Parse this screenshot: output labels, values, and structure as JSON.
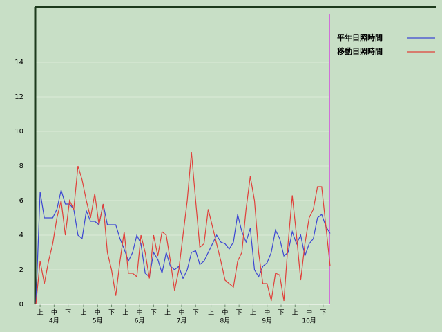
{
  "chart_data": {
    "type": "line",
    "x": [
      0,
      3,
      6,
      9,
      12,
      15,
      18,
      21,
      24,
      27,
      30,
      33,
      36,
      39,
      42,
      45,
      48,
      51,
      54,
      57,
      60,
      63,
      66,
      69,
      72,
      75,
      78,
      81,
      84,
      87,
      90,
      93,
      96,
      99,
      102,
      105,
      108,
      111,
      114,
      117,
      120,
      123,
      126,
      129,
      132,
      135,
      138,
      141,
      144,
      147,
      150,
      153,
      156,
      159,
      162,
      165,
      168,
      171,
      174,
      177,
      180,
      183,
      186,
      189,
      192,
      195,
      198,
      201,
      204,
      207,
      210
    ],
    "series": [
      {
        "name": "平年日照時間",
        "color": "#3c46d2",
        "values": [
          0,
          6.5,
          5.0,
          5.0,
          5.0,
          5.5,
          6.6,
          5.8,
          5.8,
          5.5,
          4.0,
          3.8,
          5.4,
          4.8,
          4.8,
          4.6,
          5.8,
          4.6,
          4.6,
          4.6,
          3.8,
          3.2,
          2.5,
          3.0,
          4.0,
          3.5,
          1.8,
          1.6,
          3.0,
          2.6,
          1.8,
          3.0,
          2.2,
          2.0,
          2.2,
          1.5,
          2.0,
          3.0,
          3.1,
          2.3,
          2.5,
          3.0,
          3.5,
          4.0,
          3.6,
          3.5,
          3.2,
          3.6,
          5.2,
          4.2,
          3.6,
          4.4,
          2.0,
          1.6,
          2.2,
          2.4,
          3.0,
          4.3,
          3.8,
          2.8,
          3.0,
          4.2,
          3.5,
          4.0,
          2.8,
          3.5,
          3.8,
          5.0,
          5.2,
          4.5,
          4.1
        ]
      },
      {
        "name": "移動日照時間",
        "color": "#e0403a",
        "values": [
          0,
          2.5,
          1.2,
          2.5,
          3.5,
          5.0,
          6.0,
          4.0,
          6.0,
          5.5,
          8.0,
          7.2,
          6.0,
          5.0,
          6.4,
          4.6,
          5.8,
          3.0,
          2.0,
          0.5,
          2.5,
          4.2,
          1.8,
          1.8,
          1.6,
          4.0,
          3.0,
          1.5,
          4.0,
          2.8,
          4.2,
          4.0,
          2.5,
          0.8,
          2.0,
          4.0,
          6.0,
          8.8,
          6.0,
          3.3,
          3.5,
          5.5,
          4.5,
          3.5,
          2.5,
          1.4,
          1.2,
          1.0,
          2.5,
          3.0,
          5.5,
          7.4,
          6.0,
          3.0,
          1.2,
          1.2,
          0.2,
          1.8,
          1.7,
          0.2,
          3.5,
          6.3,
          4.0,
          1.4,
          3.5,
          5.0,
          5.5,
          6.8,
          6.8,
          4.5,
          2.2
        ]
      }
    ],
    "xlim": [
      0,
      210
    ],
    "xticks": [
      {
        "value": 3,
        "label": "上"
      },
      {
        "value": 13,
        "label": "中"
      },
      {
        "value": 23,
        "label": "下"
      },
      {
        "value": 34,
        "label": "上"
      },
      {
        "value": 44,
        "label": "中"
      },
      {
        "value": 54,
        "label": "下"
      },
      {
        "value": 64,
        "label": "上"
      },
      {
        "value": 74,
        "label": "中"
      },
      {
        "value": 84,
        "label": "下"
      },
      {
        "value": 94,
        "label": "上"
      },
      {
        "value": 104,
        "label": "中"
      },
      {
        "value": 114,
        "label": "下"
      },
      {
        "value": 125,
        "label": "上"
      },
      {
        "value": 135,
        "label": "中"
      },
      {
        "value": 145,
        "label": "下"
      },
      {
        "value": 155,
        "label": "上"
      },
      {
        "value": 165,
        "label": "中"
      },
      {
        "value": 175,
        "label": "下"
      },
      {
        "value": 185,
        "label": "上"
      },
      {
        "value": 195,
        "label": "中"
      },
      {
        "value": 205,
        "label": "下"
      }
    ],
    "month_labels": [
      {
        "value": 13,
        "label": "4月"
      },
      {
        "value": 44,
        "label": "5月"
      },
      {
        "value": 74,
        "label": "6月"
      },
      {
        "value": 104,
        "label": "7月"
      },
      {
        "value": 135,
        "label": "8月"
      },
      {
        "value": 165,
        "label": "9月"
      },
      {
        "value": 195,
        "label": "10月"
      }
    ],
    "ylim": [
      0,
      17.2
    ],
    "yticks": [
      0,
      2,
      4,
      6,
      8,
      10,
      12,
      14
    ],
    "grid": true
  }
}
